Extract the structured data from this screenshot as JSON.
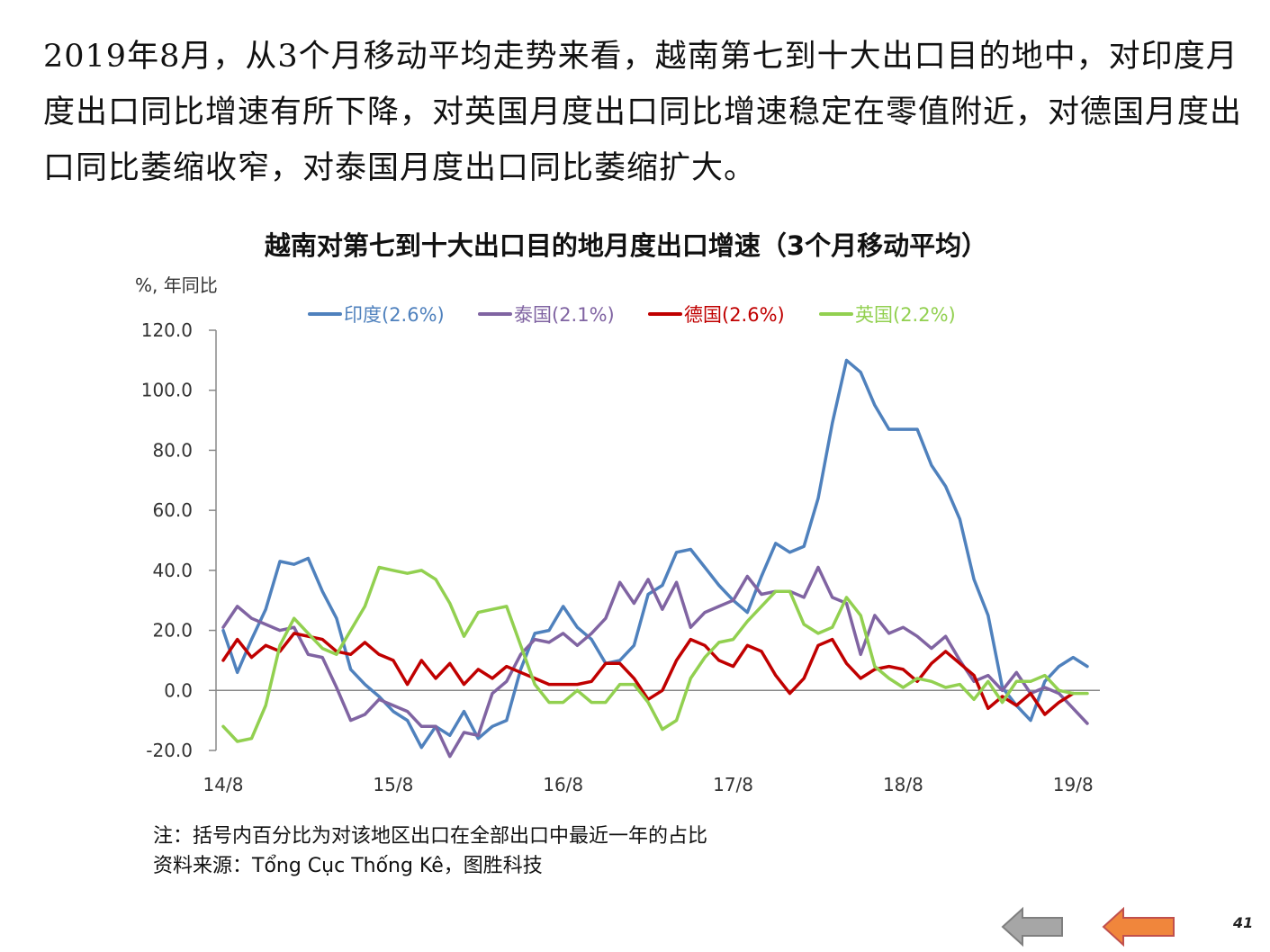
{
  "summary_text": "2019年8月，从3个月移动平均走势来看，越南第七到十大出口目的地中，对印度月度出口同比增速有所下降，对英国月度出口同比增速稳定在零值附近，对德国月度出口同比萎缩收窄，对泰国月度出口同比萎缩扩大。",
  "note": {
    "footnote": "注：括号内百分比为对该地区出口在全部出口中最近一年的占比",
    "source": "资料来源：Tổng Cục Thống Kê，图胜科技"
  },
  "page_number": "41",
  "navigation": {
    "prev_icon": "left-arrow-gray",
    "next_icon": "left-arrow-orange",
    "prev_color": "#a6a6a6",
    "next_color": "#f0863c"
  },
  "chart_data": {
    "type": "line",
    "title": "越南对第七到十大出口目的地月度出口增速（3个月移动平均）",
    "ylabel": "%, 年同比",
    "ylim": [
      -20,
      120
    ],
    "y_ticks": [
      "120.0",
      "100.0",
      "80.0",
      "60.0",
      "40.0",
      "20.0",
      "0.0",
      "-20.0"
    ],
    "x_tick_labels": [
      "14/8",
      "15/8",
      "16/8",
      "17/8",
      "18/8",
      "19/8"
    ],
    "x_start": "2014-08",
    "x_end": "2019-08",
    "legend_position": "top",
    "series": [
      {
        "name": "印度(2.6%)",
        "color": "#4f81bd",
        "values": [
          20,
          6,
          17,
          27,
          43,
          42,
          44,
          33,
          24,
          7,
          2,
          -2,
          -7,
          -10,
          -19,
          -12,
          -15,
          -7,
          -16,
          -12,
          -10,
          7,
          19,
          20,
          28,
          21,
          17,
          9,
          10,
          15,
          32,
          35,
          46,
          47,
          41,
          35,
          30,
          26,
          38,
          49,
          46,
          48,
          64,
          89,
          110,
          106,
          95,
          87,
          87,
          87,
          75,
          68,
          57,
          37,
          25,
          1,
          -5,
          -10,
          3,
          8,
          11,
          8
        ]
      },
      {
        "name": "泰国(2.1%)",
        "color": "#8064a2",
        "values": [
          21,
          28,
          24,
          22,
          20,
          21,
          12,
          11,
          1,
          -10,
          -8,
          -3,
          -5,
          -7,
          -12,
          -12,
          -22,
          -14,
          -15,
          -1,
          3,
          12,
          17,
          16,
          19,
          15,
          19,
          24,
          36,
          29,
          37,
          27,
          36,
          21,
          26,
          28,
          30,
          38,
          32,
          33,
          33,
          31,
          41,
          31,
          29,
          12,
          25,
          19,
          21,
          18,
          14,
          18,
          10,
          3,
          5,
          0,
          6,
          -1,
          1,
          -1,
          -6,
          -11
        ]
      },
      {
        "name": "德国(2.6%)",
        "color": "#c00000",
        "values": [
          10,
          17,
          11,
          15,
          13,
          19,
          18,
          17,
          13,
          12,
          16,
          12,
          10,
          2,
          10,
          4,
          9,
          2,
          7,
          4,
          8,
          6,
          4,
          2,
          2,
          2,
          3,
          9,
          9,
          4,
          -3,
          0,
          10,
          17,
          15,
          10,
          8,
          15,
          13,
          5,
          -1,
          4,
          15,
          17,
          9,
          4,
          7,
          8,
          7,
          3,
          9,
          13,
          9,
          5,
          -6,
          -2,
          -5,
          -1,
          -8,
          -4,
          -1,
          null
        ]
      },
      {
        "name": "英国(2.2%)",
        "color": "#92d050",
        "values": [
          -12,
          -17,
          -16,
          -5,
          15,
          24,
          19,
          14,
          12,
          20,
          28,
          41,
          40,
          39,
          40,
          37,
          29,
          18,
          26,
          27,
          28,
          15,
          2,
          -4,
          -4,
          0,
          -4,
          -4,
          2,
          2,
          -4,
          -13,
          -10,
          4,
          11,
          16,
          17,
          23,
          28,
          33,
          33,
          22,
          19,
          21,
          31,
          25,
          8,
          4,
          1,
          4,
          3,
          1,
          2,
          -3,
          3,
          -4,
          3,
          3,
          5,
          0,
          -1,
          -1
        ]
      }
    ]
  }
}
